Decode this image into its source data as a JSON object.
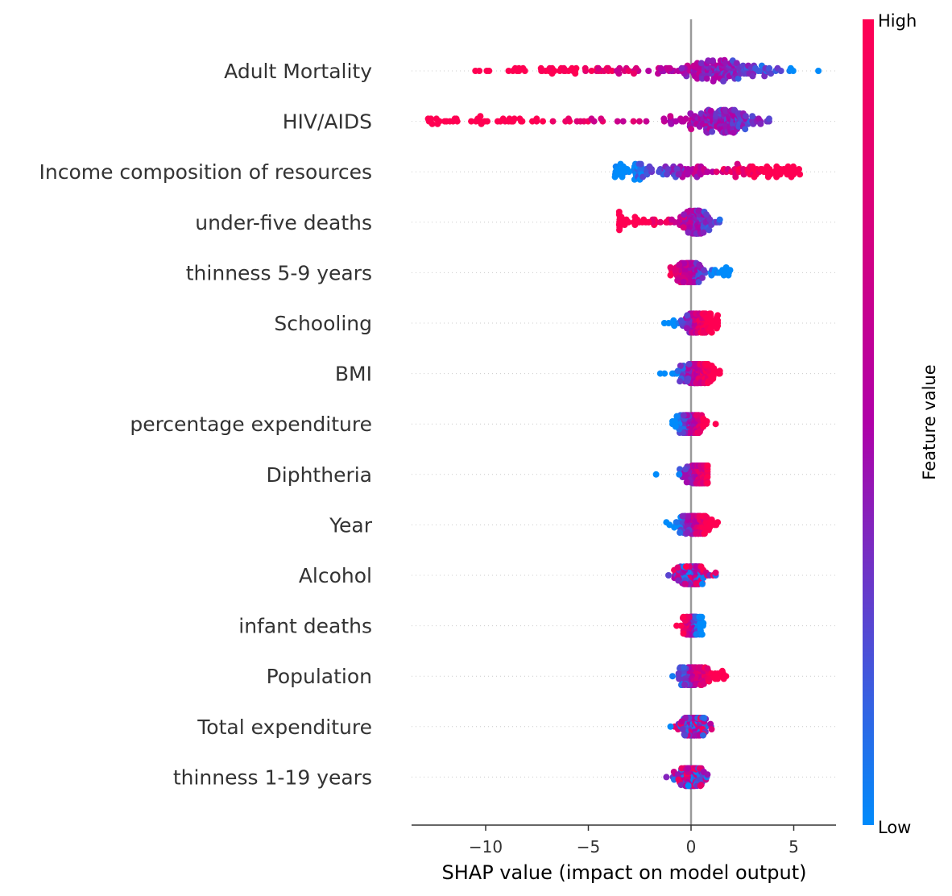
{
  "chart_data": {
    "type": "scatter",
    "subtype": "shap-beeswarm",
    "xlabel": "SHAP value (impact on model output)",
    "xlim": [
      -13.5,
      7.2
    ],
    "xticks": [
      -10,
      -5,
      0,
      5
    ],
    "xtick_labels": [
      "−10",
      "−5",
      "0",
      "5"
    ],
    "zero_line": true,
    "colorbar": {
      "label": "Feature value",
      "high_label": "High",
      "low_label": "Low",
      "low_color": "#008bfb",
      "high_color": "#ff0052",
      "mid_color": "#b000a8"
    },
    "features": [
      {
        "name": "Adult Mortality",
        "min": -10.5,
        "max": 6.2,
        "spread": 0.45,
        "peak": 1.8,
        "trend": -1,
        "skew": "left-heavy"
      },
      {
        "name": "HIV/AIDS",
        "min": -12.8,
        "max": 3.8,
        "spread": 0.5,
        "peak": 1.6,
        "trend": -1,
        "skew": "left-tail"
      },
      {
        "name": "Income composition of resources",
        "min": -3.7,
        "max": 5.3,
        "spread": 0.5,
        "peak": 0.8,
        "trend": 1,
        "skew": "wide"
      },
      {
        "name": "under-five deaths ",
        "min": -3.5,
        "max": 1.4,
        "spread": 0.5,
        "peak": 0.3,
        "trend": -1,
        "skew": "left-tail"
      },
      {
        "name": "thinness 5-9 years",
        "min": -1.0,
        "max": 1.9,
        "spread": 0.35,
        "peak": -0.2,
        "trend": -1,
        "skew": "right"
      },
      {
        "name": "Schooling",
        "min": -1.3,
        "max": 1.3,
        "spread": 0.35,
        "peak": 0.4,
        "trend": 1,
        "skew": "center"
      },
      {
        "name": "BMI ",
        "min": -1.5,
        "max": 1.4,
        "spread": 0.35,
        "peak": 0.3,
        "trend": 1,
        "skew": "center"
      },
      {
        "name": "percentage expenditure",
        "min": -0.9,
        "max": 1.2,
        "spread": 0.3,
        "peak": 0.0,
        "trend": 1,
        "skew": "center"
      },
      {
        "name": "Diphtheria ",
        "min": -1.7,
        "max": 0.8,
        "spread": 0.3,
        "peak": 0.3,
        "trend": 1,
        "skew": "center"
      },
      {
        "name": "Year",
        "min": -1.2,
        "max": 1.3,
        "spread": 0.3,
        "peak": 0.2,
        "trend": 1,
        "skew": "center"
      },
      {
        "name": "Alcohol",
        "min": -1.1,
        "max": 1.2,
        "spread": 0.3,
        "peak": 0.1,
        "trend": 0,
        "skew": "center"
      },
      {
        "name": "infant deaths",
        "min": -0.7,
        "max": 0.6,
        "spread": 0.3,
        "peak": 0.1,
        "trend": -1,
        "skew": "center"
      },
      {
        "name": "Population",
        "min": -0.9,
        "max": 1.7,
        "spread": 0.3,
        "peak": 0.0,
        "trend": 1,
        "skew": "right"
      },
      {
        "name": "Total expenditure",
        "min": -1.0,
        "max": 1.0,
        "spread": 0.3,
        "peak": 0.0,
        "trend": 0,
        "skew": "center"
      },
      {
        "name": "thinness  1-19 years",
        "min": -1.2,
        "max": 0.8,
        "spread": 0.3,
        "peak": 0.0,
        "trend": 0,
        "skew": "center"
      }
    ]
  }
}
